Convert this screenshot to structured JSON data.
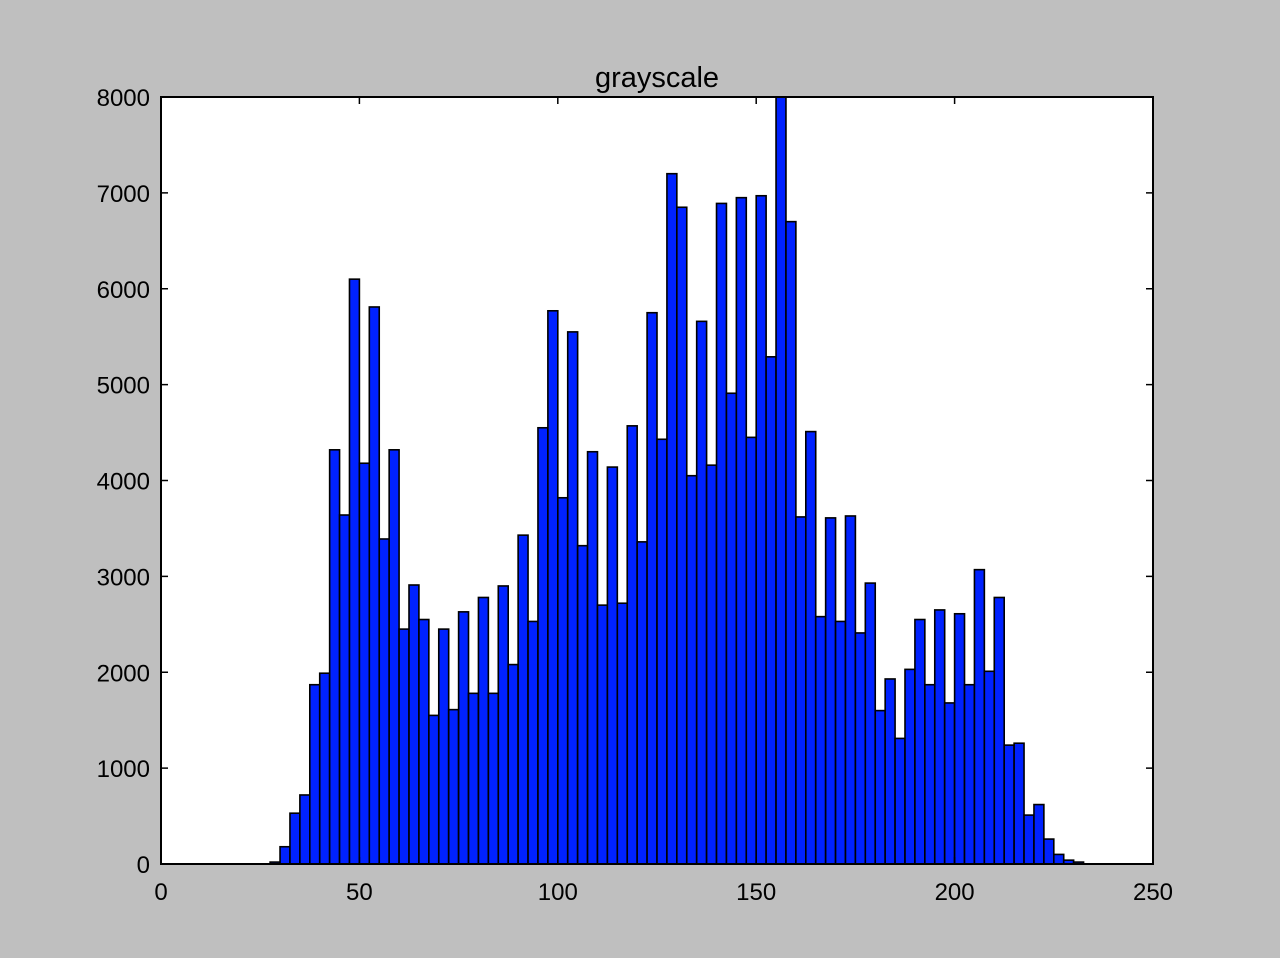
{
  "chart_data": {
    "type": "bar",
    "title": "grayscale",
    "xlabel": "",
    "ylabel": "",
    "xlim": [
      0,
      250
    ],
    "ylim": [
      0,
      8000
    ],
    "xticks": [
      0,
      50,
      100,
      150,
      200,
      250
    ],
    "yticks": [
      0,
      1000,
      2000,
      3000,
      4000,
      5000,
      6000,
      7000,
      8000
    ],
    "bin_width": 2.5,
    "grid": false,
    "legend": "none",
    "bar_color": "#0022ff",
    "bar_edge_color": "#000000",
    "series": [
      {
        "bin_starts": [
          2.5,
          5,
          7.5,
          10,
          12.5,
          15,
          17.5,
          20,
          22.5,
          25,
          27.5,
          30,
          32.5,
          35,
          37.5,
          40,
          42.5,
          45,
          47.5,
          50,
          52.5,
          55,
          57.5,
          60,
          62.5,
          65,
          67.5,
          70,
          72.5,
          75,
          77.5,
          80,
          82.5,
          85,
          87.5,
          90,
          92.5,
          95,
          97.5,
          100,
          102.5,
          105,
          107.5,
          110,
          112.5,
          115,
          117.5,
          120,
          122.5,
          125,
          127.5,
          130,
          132.5,
          135,
          137.5,
          140,
          142.5,
          145,
          147.5,
          150,
          152.5,
          155,
          157.5,
          160,
          162.5,
          165,
          167.5,
          170,
          172.5,
          175,
          177.5,
          180,
          182.5,
          185,
          187.5,
          190,
          192.5,
          195,
          197.5,
          200,
          202.5,
          205,
          207.5,
          210,
          212.5,
          215,
          217.5,
          220,
          222.5,
          225,
          227.5,
          230,
          232.5,
          235,
          237.5,
          240,
          242.5,
          245,
          247.5
        ],
        "values": [
          0,
          0,
          0,
          0,
          0,
          0,
          0,
          0,
          0,
          0,
          20,
          180,
          530,
          720,
          1870,
          1990,
          4320,
          3640,
          6100,
          4180,
          5810,
          3390,
          4320,
          2450,
          2910,
          2550,
          1550,
          2450,
          1610,
          2630,
          1780,
          2780,
          1780,
          2900,
          2080,
          3430,
          2530,
          4550,
          5770,
          3820,
          5550,
          3320,
          4300,
          2700,
          4140,
          2720,
          4570,
          3360,
          5750,
          4430,
          7200,
          6850,
          4050,
          5660,
          4160,
          6890,
          4910,
          6950,
          4450,
          6970,
          5290,
          8000,
          6700,
          3620,
          4510,
          2580,
          3610,
          2530,
          3630,
          2410,
          2930,
          1600,
          1930,
          1310,
          2030,
          2550,
          1870,
          2650,
          1680,
          2610,
          1870,
          3070,
          2010,
          2780,
          1240,
          1260,
          510,
          620,
          260,
          100,
          40,
          20,
          0,
          0,
          0,
          0,
          0,
          0,
          0
        ]
      }
    ]
  }
}
